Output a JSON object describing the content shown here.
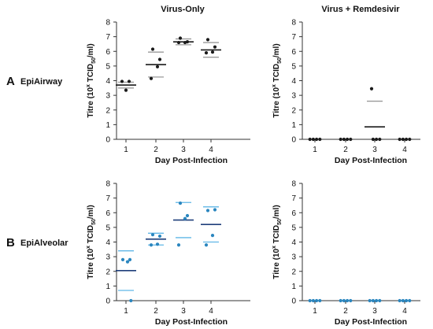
{
  "figure": {
    "rows": [
      {
        "letter": "A",
        "name": "EpiAirway"
      },
      {
        "letter": "B",
        "name": "EpiAlveolar"
      }
    ],
    "columns": [
      "Virus-Only",
      "Virus + Remdesivir"
    ]
  },
  "colors": {
    "black": "#1a1a1a",
    "blue_point": "#2a86bf",
    "dark_blue_line": "#1f3f7a",
    "light_blue_line": "#5fb6e6",
    "grey_line": "#999999",
    "axis": "#333333"
  },
  "chart_data": [
    {
      "type": "scatter",
      "panel": "A-left",
      "title": "Virus-Only",
      "xlabel": "Day Post-Infection",
      "ylabel": "Titre (10^x TCID50/ml)",
      "ylabel_parts": {
        "pre": "Titre (10",
        "sup": "x",
        "mid": " TCID",
        "sub": "50",
        "post": "/ml)"
      },
      "categories": [
        "1",
        "2",
        "3",
        "4"
      ],
      "ylim": [
        0,
        8
      ],
      "yticks": [
        "0",
        "1",
        "2",
        "3",
        "4",
        "5",
        "6",
        "7",
        "8"
      ],
      "color": "#1a1a1a",
      "points": [
        {
          "x": 1,
          "y": [
            3.95,
            3.95,
            3.35
          ]
        },
        {
          "x": 2,
          "y": [
            6.15,
            5.45,
            4.95,
            4.15
          ]
        },
        {
          "x": 3,
          "y": [
            6.9,
            6.65,
            6.6,
            6.6
          ]
        },
        {
          "x": 4,
          "y": [
            6.8,
            6.3,
            5.95,
            5.9
          ]
        }
      ],
      "mean": [
        3.7,
        5.1,
        6.65,
        6.1
      ],
      "sd_upper": [
        3.9,
        5.95,
        6.85,
        6.6
      ],
      "sd_lower": [
        3.5,
        4.25,
        6.45,
        5.6
      ]
    },
    {
      "type": "scatter",
      "panel": "A-right",
      "title": "Virus + Remdesivir",
      "xlabel": "Day Post-Infection",
      "ylabel": "Titre (10^x TCID50/ml)",
      "ylabel_parts": {
        "pre": "Titre (10",
        "sup": "x",
        "mid": " TCID",
        "sub": "50",
        "post": "/ml)"
      },
      "categories": [
        "1",
        "2",
        "3",
        "4"
      ],
      "ylim": [
        0,
        8
      ],
      "yticks": [
        "0",
        "1",
        "2",
        "3",
        "4",
        "5",
        "6",
        "7",
        "8"
      ],
      "color": "#1a1a1a",
      "points": [
        {
          "x": 1,
          "y": [
            0,
            0,
            0,
            0
          ]
        },
        {
          "x": 2,
          "y": [
            0,
            0,
            0,
            0
          ]
        },
        {
          "x": 3,
          "y": [
            3.45,
            0,
            0,
            0
          ]
        },
        {
          "x": 4,
          "y": [
            0,
            0,
            0,
            0
          ]
        }
      ],
      "mean": [
        null,
        null,
        0.85,
        null
      ],
      "sd_upper": [
        null,
        null,
        2.6,
        null
      ],
      "sd_lower": [
        null,
        null,
        null,
        null
      ]
    },
    {
      "type": "scatter",
      "panel": "B-left",
      "title": "",
      "xlabel": "Day Post-Infection",
      "ylabel": "Titre (10^x TCID50/ml)",
      "ylabel_parts": {
        "pre": "Titre (10",
        "sup": "x",
        "mid": " TCID",
        "sub": "50",
        "post": "/ml)"
      },
      "categories": [
        "1",
        "2",
        "3",
        "4"
      ],
      "ylim": [
        0,
        8
      ],
      "yticks": [
        "0",
        "1",
        "2",
        "3",
        "4",
        "5",
        "6",
        "7",
        "8"
      ],
      "color": "#2a86bf",
      "points": [
        {
          "x": 1,
          "y": [
            2.8,
            2.8,
            2.65,
            0
          ]
        },
        {
          "x": 2,
          "y": [
            4.5,
            4.4,
            3.85,
            3.8
          ]
        },
        {
          "x": 3,
          "y": [
            6.65,
            5.8,
            5.6,
            3.8
          ]
        },
        {
          "x": 4,
          "y": [
            6.15,
            6.2,
            4.45,
            3.8
          ]
        }
      ],
      "mean": [
        2.05,
        4.2,
        5.5,
        5.2
      ],
      "sd_upper": [
        3.4,
        4.6,
        6.7,
        6.4
      ],
      "sd_lower": [
        0.7,
        3.8,
        4.3,
        4.0
      ]
    },
    {
      "type": "scatter",
      "panel": "B-right",
      "title": "",
      "xlabel": "Day Post-Infection",
      "ylabel": "Titre (10^x TCID50/ml)",
      "ylabel_parts": {
        "pre": "Titre (10",
        "sup": "x",
        "mid": " TCID",
        "sub": "50",
        "post": "/ml)"
      },
      "categories": [
        "1",
        "2",
        "3",
        "4"
      ],
      "ylim": [
        0,
        8
      ],
      "yticks": [
        "0",
        "1",
        "2",
        "3",
        "4",
        "5",
        "6",
        "7",
        "8"
      ],
      "color": "#2a86bf",
      "points": [
        {
          "x": 1,
          "y": [
            0,
            0,
            0,
            0
          ]
        },
        {
          "x": 2,
          "y": [
            0,
            0,
            0,
            0
          ]
        },
        {
          "x": 3,
          "y": [
            0,
            0,
            0,
            0
          ]
        },
        {
          "x": 4,
          "y": [
            0,
            0,
            0,
            0
          ]
        }
      ],
      "mean": [
        null,
        null,
        null,
        null
      ],
      "sd_upper": [
        null,
        null,
        null,
        null
      ],
      "sd_lower": [
        null,
        null,
        null,
        null
      ]
    }
  ]
}
